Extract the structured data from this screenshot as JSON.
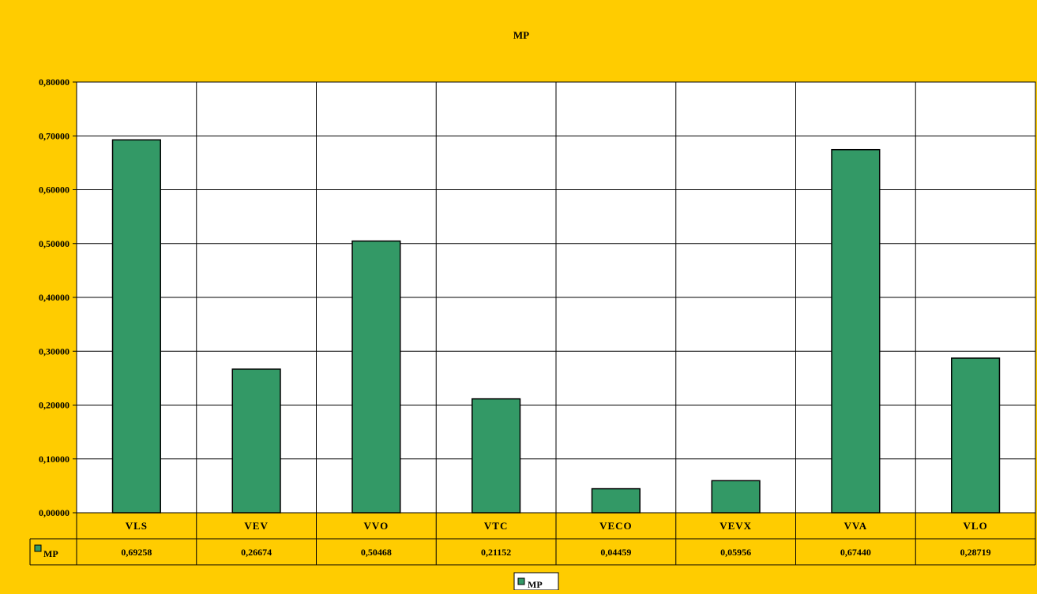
{
  "chart_data": {
    "type": "bar",
    "title": "MP",
    "categories": [
      "VLS",
      "VEV",
      "VVO",
      "VTC",
      "VECO",
      "VEVX",
      "VVA",
      "VLO"
    ],
    "series": [
      {
        "name": "MP",
        "values": [
          0.69258,
          0.26674,
          0.50468,
          0.21152,
          0.04459,
          0.05956,
          0.6744,
          0.28719
        ],
        "color": "#339966"
      }
    ],
    "value_labels": [
      "0,69258",
      "0,26674",
      "0,50468",
      "0,21152",
      "0,04459",
      "0,05956",
      "0,67440",
      "0,28719"
    ],
    "ylim": [
      0,
      0.8
    ],
    "yticks": [
      0,
      0.1,
      0.2,
      0.3,
      0.4,
      0.5,
      0.6,
      0.7,
      0.8
    ],
    "ytick_labels": [
      "0,00000",
      "0,10000",
      "0,20000",
      "0,30000",
      "0,40000",
      "0,50000",
      "0,60000",
      "0,70000",
      "0,80000"
    ],
    "grid": true,
    "data_table": true,
    "legend_position": "bottom",
    "colors": {
      "background": "#FFCC00",
      "plot_area": "#FFFFFF",
      "bar": "#339966",
      "line": "#000000"
    }
  }
}
